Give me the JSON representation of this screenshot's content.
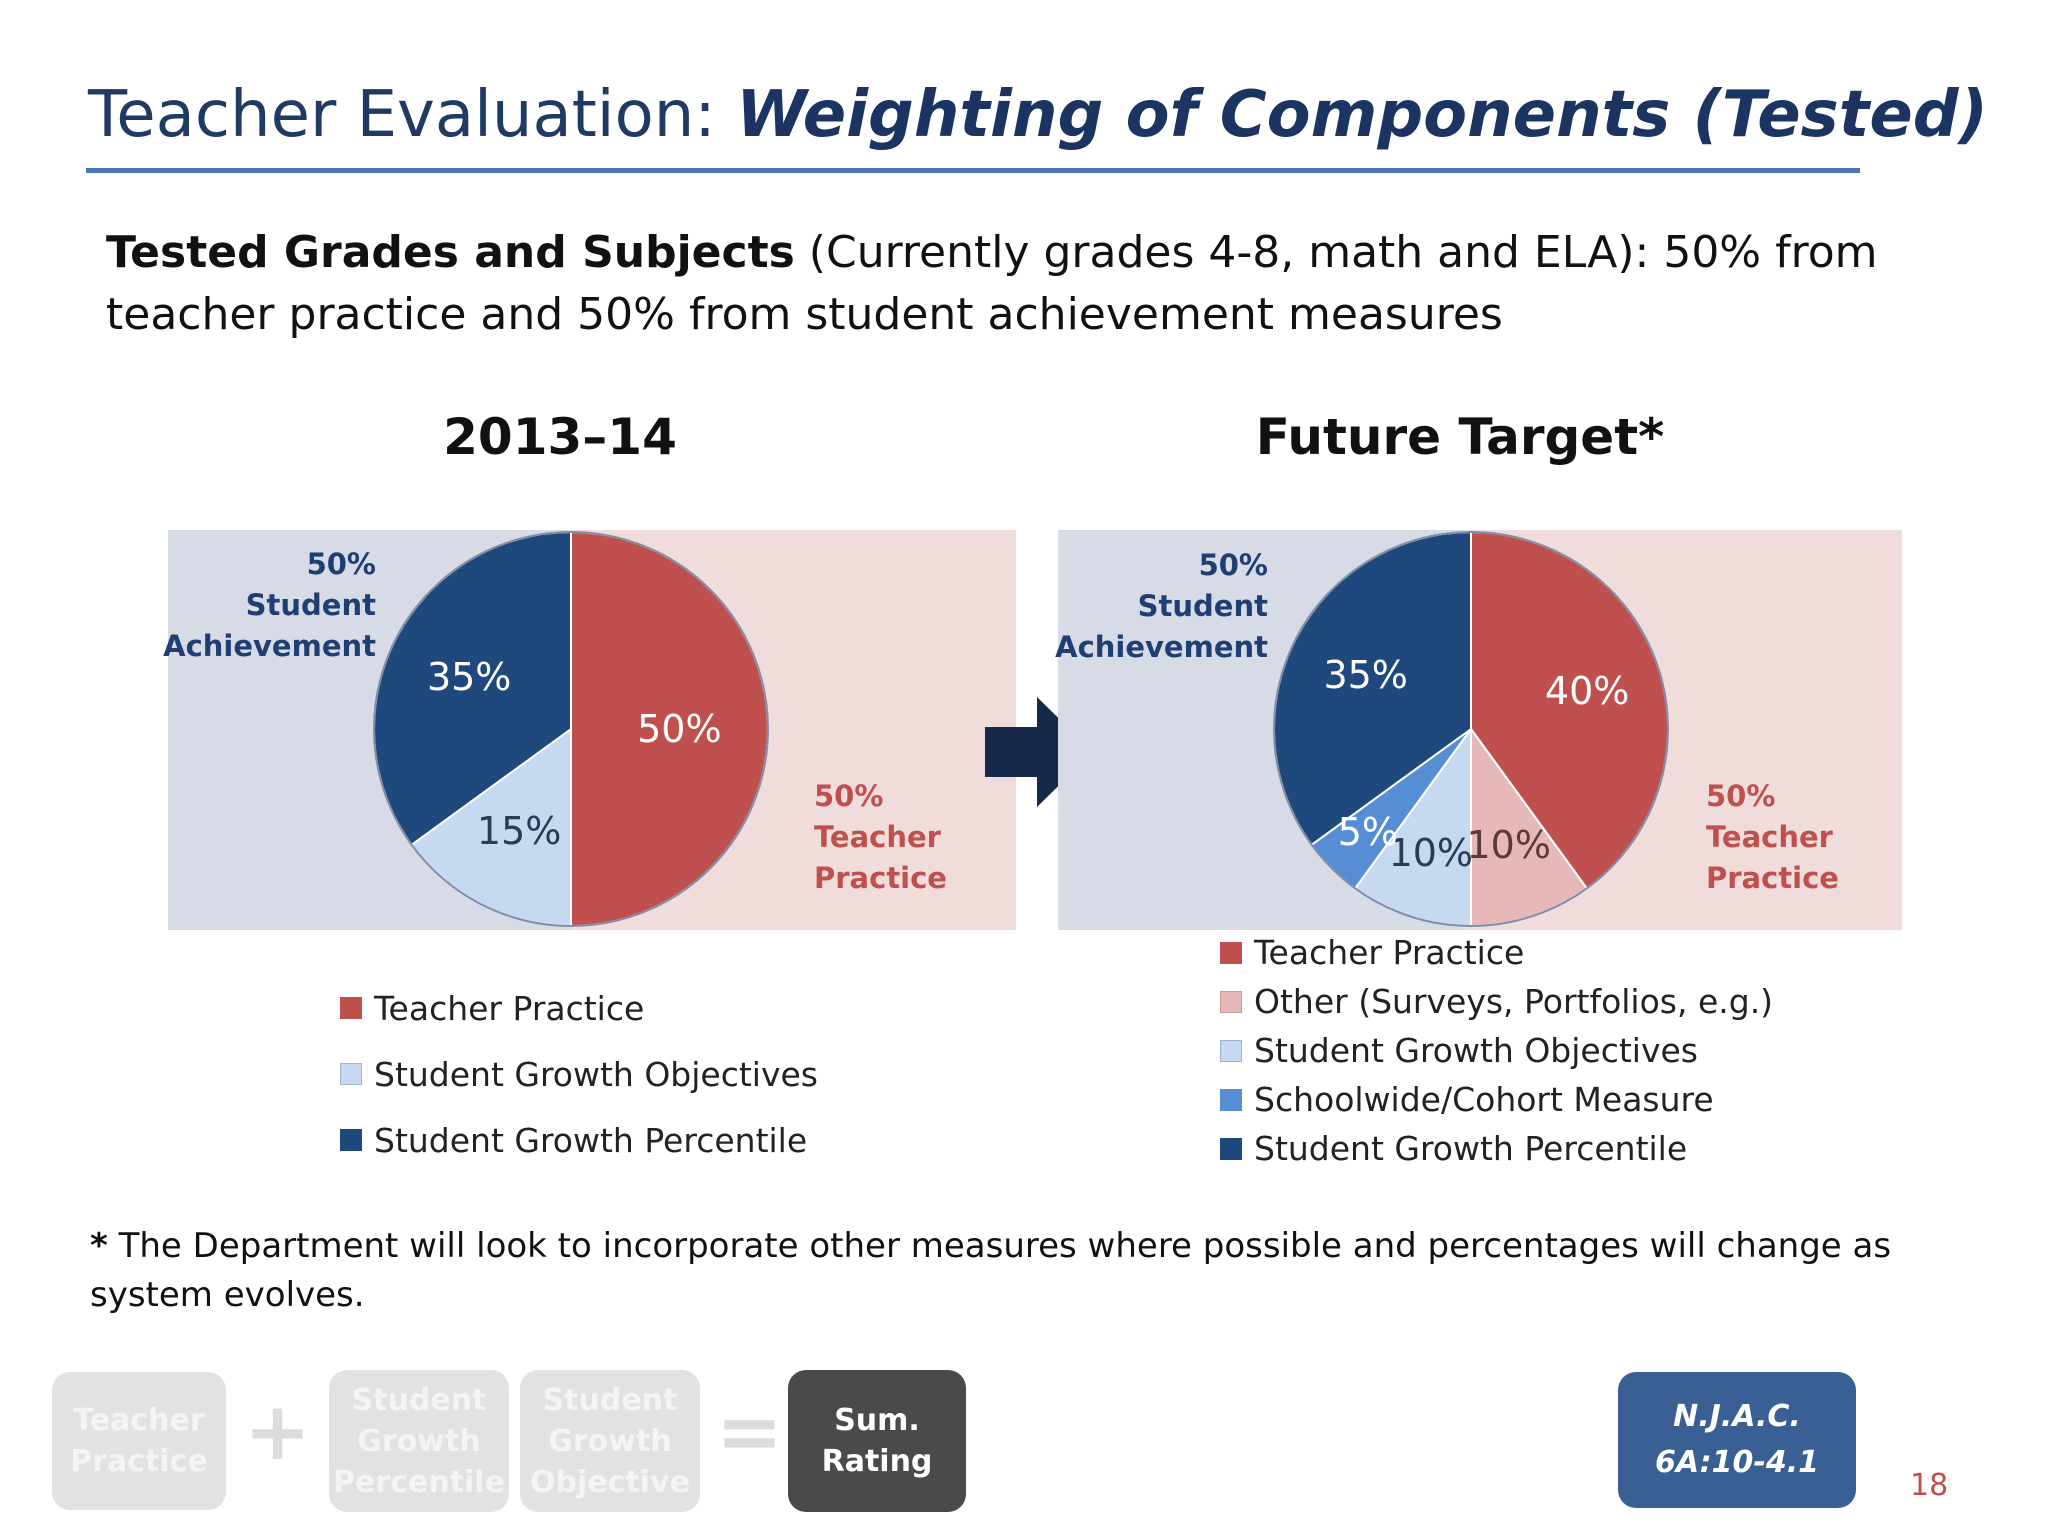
{
  "header": {
    "title_plain": "Teacher Evaluation: ",
    "title_bold": "Weighting of Components (Tested)"
  },
  "intro": {
    "bold": "Tested Grades and Subjects",
    "rest": " (Currently grades 4-8, math and ELA): 50% from teacher practice and 50% from student achievement measures"
  },
  "colors": {
    "teacher_practice": "#c0504d",
    "other": "#e6b9b8",
    "student_growth_objectives": "#c6d9f1",
    "schoolwide_measure": "#558ed5",
    "student_growth_percentile": "#1f497d",
    "panel_blue": "#d6dbe5",
    "panel_pink": "#f1dcdc",
    "arrow": "#17294a"
  },
  "chart_data": [
    {
      "type": "pie",
      "title": "2013–14",
      "categories": [
        "Teacher Practice",
        "Student Growth Objectives",
        "Student Growth Percentile"
      ],
      "values": [
        50,
        15,
        35
      ],
      "labels": [
        "50%",
        "15%",
        "35%"
      ],
      "colors": [
        "#c0504d",
        "#c6d9f1",
        "#1f497d"
      ],
      "group_labels": {
        "left": [
          "50%",
          "Student",
          "Achievement"
        ],
        "right": [
          "50%",
          "Teacher",
          "Practice"
        ]
      },
      "legend": [
        "Teacher Practice",
        "Student Growth Objectives",
        "Student Growth Percentile"
      ]
    },
    {
      "type": "pie",
      "title": "Future Target*",
      "categories": [
        "Teacher Practice",
        "Other (Surveys, Portfolios, e.g.)",
        "Student Growth Objectives",
        "Schoolwide/Cohort Measure",
        "Student Growth Percentile"
      ],
      "values": [
        40,
        10,
        10,
        5,
        35
      ],
      "labels": [
        "40%",
        "10%",
        "10%",
        "5%",
        "35%"
      ],
      "colors": [
        "#c0504d",
        "#e6b9b8",
        "#c6d9f1",
        "#558ed5",
        "#1f497d"
      ],
      "group_labels": {
        "left": [
          "50%",
          "Student",
          "Achievement"
        ],
        "right": [
          "50%",
          "Teacher",
          "Practice"
        ]
      },
      "legend": [
        "Teacher Practice",
        "Other (Surveys, Portfolios, e.g.)",
        "Student Growth Objectives",
        "Schoolwide/Cohort Measure",
        "Student Growth Percentile"
      ]
    }
  ],
  "footnote": {
    "star": "*",
    "text": " The Department will look to incorporate other measures where possible and percentages will change as system evolves."
  },
  "flow": {
    "teacher_practice": [
      "Teacher",
      "Practice"
    ],
    "plus": "+",
    "sgp": [
      "Student",
      "Growth",
      "Percentile"
    ],
    "sgo": [
      "Student",
      "Growth",
      "Objective"
    ],
    "equals": "=",
    "sum_rating": [
      "Sum.",
      "Rating"
    ]
  },
  "citation": [
    "N.J.A.C.",
    "6A:10-4.1"
  ],
  "page_number": "18"
}
